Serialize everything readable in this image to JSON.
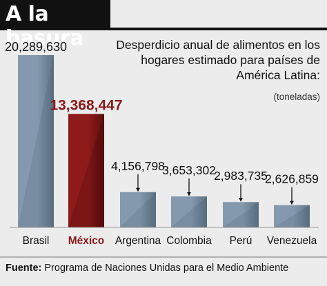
{
  "header": {
    "title": "A la basura"
  },
  "chart_data": {
    "type": "bar",
    "title": "Desperdicio anual de alimentos en los hogares estimado para países de América Latina:",
    "units": "(toneladas)",
    "categories": [
      "Brasil",
      "México",
      "Argentina",
      "Colombia",
      "Perú",
      "Venezuela"
    ],
    "values": [
      20289630,
      13368447,
      4156798,
      3653302,
      2983735,
      2626859
    ],
    "value_labels": [
      "20,289,630",
      "13,368,447",
      "4,156,798",
      "3,653,302",
      "2,983,735",
      "2,626,859"
    ],
    "highlight": "México",
    "colors": {
      "bar": "#8499ad",
      "bar_highlight": "#8e1a1a",
      "label_highlight": "#8b1a1a",
      "text": "#111111"
    },
    "xlabel": "",
    "ylabel": "",
    "grid": false
  },
  "footer": {
    "source_label": "Fuente:",
    "source_text": "Programa de Naciones Unidas para el Medio Ambiente"
  }
}
